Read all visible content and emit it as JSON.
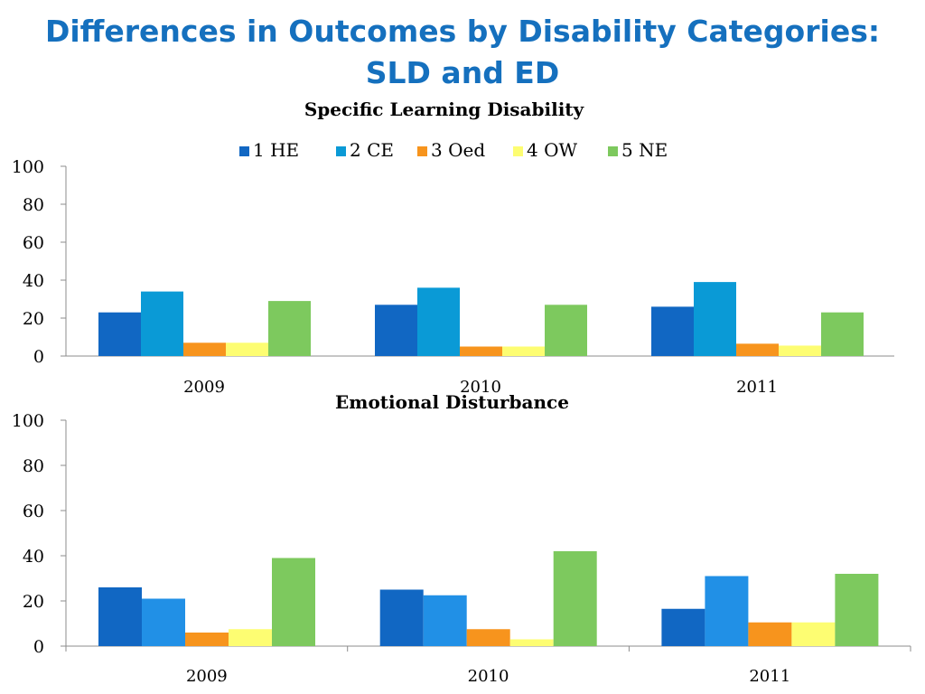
{
  "slide": {
    "title_line1": "Differences in Outcomes by Disability Categories:",
    "title_line2": "SLD  and ED"
  },
  "chart_data": [
    {
      "type": "bar",
      "title": "Specific Learning Disability",
      "categories": [
        "2009",
        "2010",
        "2011"
      ],
      "ylim": [
        0,
        100
      ],
      "yticks": [
        0,
        20,
        40,
        60,
        80,
        100
      ],
      "grid": false,
      "legend_position": "top",
      "series": [
        {
          "name": "1  HE",
          "color": "#1167c3",
          "values": [
            23,
            27,
            26
          ]
        },
        {
          "name": "2 CE",
          "color": "#0a9ad6",
          "values": [
            34,
            36,
            39
          ]
        },
        {
          "name": "3 Oed",
          "color": "#f7941d",
          "values": [
            7,
            5,
            6.5
          ]
        },
        {
          "name": "4 OW",
          "color": "#fdfd72",
          "values": [
            7,
            5,
            5.5
          ]
        },
        {
          "name": "5 NE",
          "color": "#7dc95e",
          "values": [
            29,
            27,
            23
          ]
        }
      ]
    },
    {
      "type": "bar",
      "title": "Emotional Disturbance",
      "categories": [
        "2009",
        "2010",
        "2011"
      ],
      "ylim": [
        0,
        100
      ],
      "yticks": [
        0,
        20,
        40,
        60,
        80,
        100
      ],
      "grid": false,
      "legend_position": "none",
      "series": [
        {
          "color": "#1167c3",
          "values": [
            26,
            25,
            16.5
          ]
        },
        {
          "color": "#2190e6",
          "values": [
            21,
            22.5,
            31
          ]
        },
        {
          "color": "#f7941d",
          "values": [
            6,
            7.5,
            10.5
          ]
        },
        {
          "color": "#fdfd72",
          "values": [
            7.5,
            3,
            10.5
          ]
        },
        {
          "color": "#7dc95e",
          "values": [
            39,
            42,
            32
          ]
        }
      ]
    }
  ]
}
